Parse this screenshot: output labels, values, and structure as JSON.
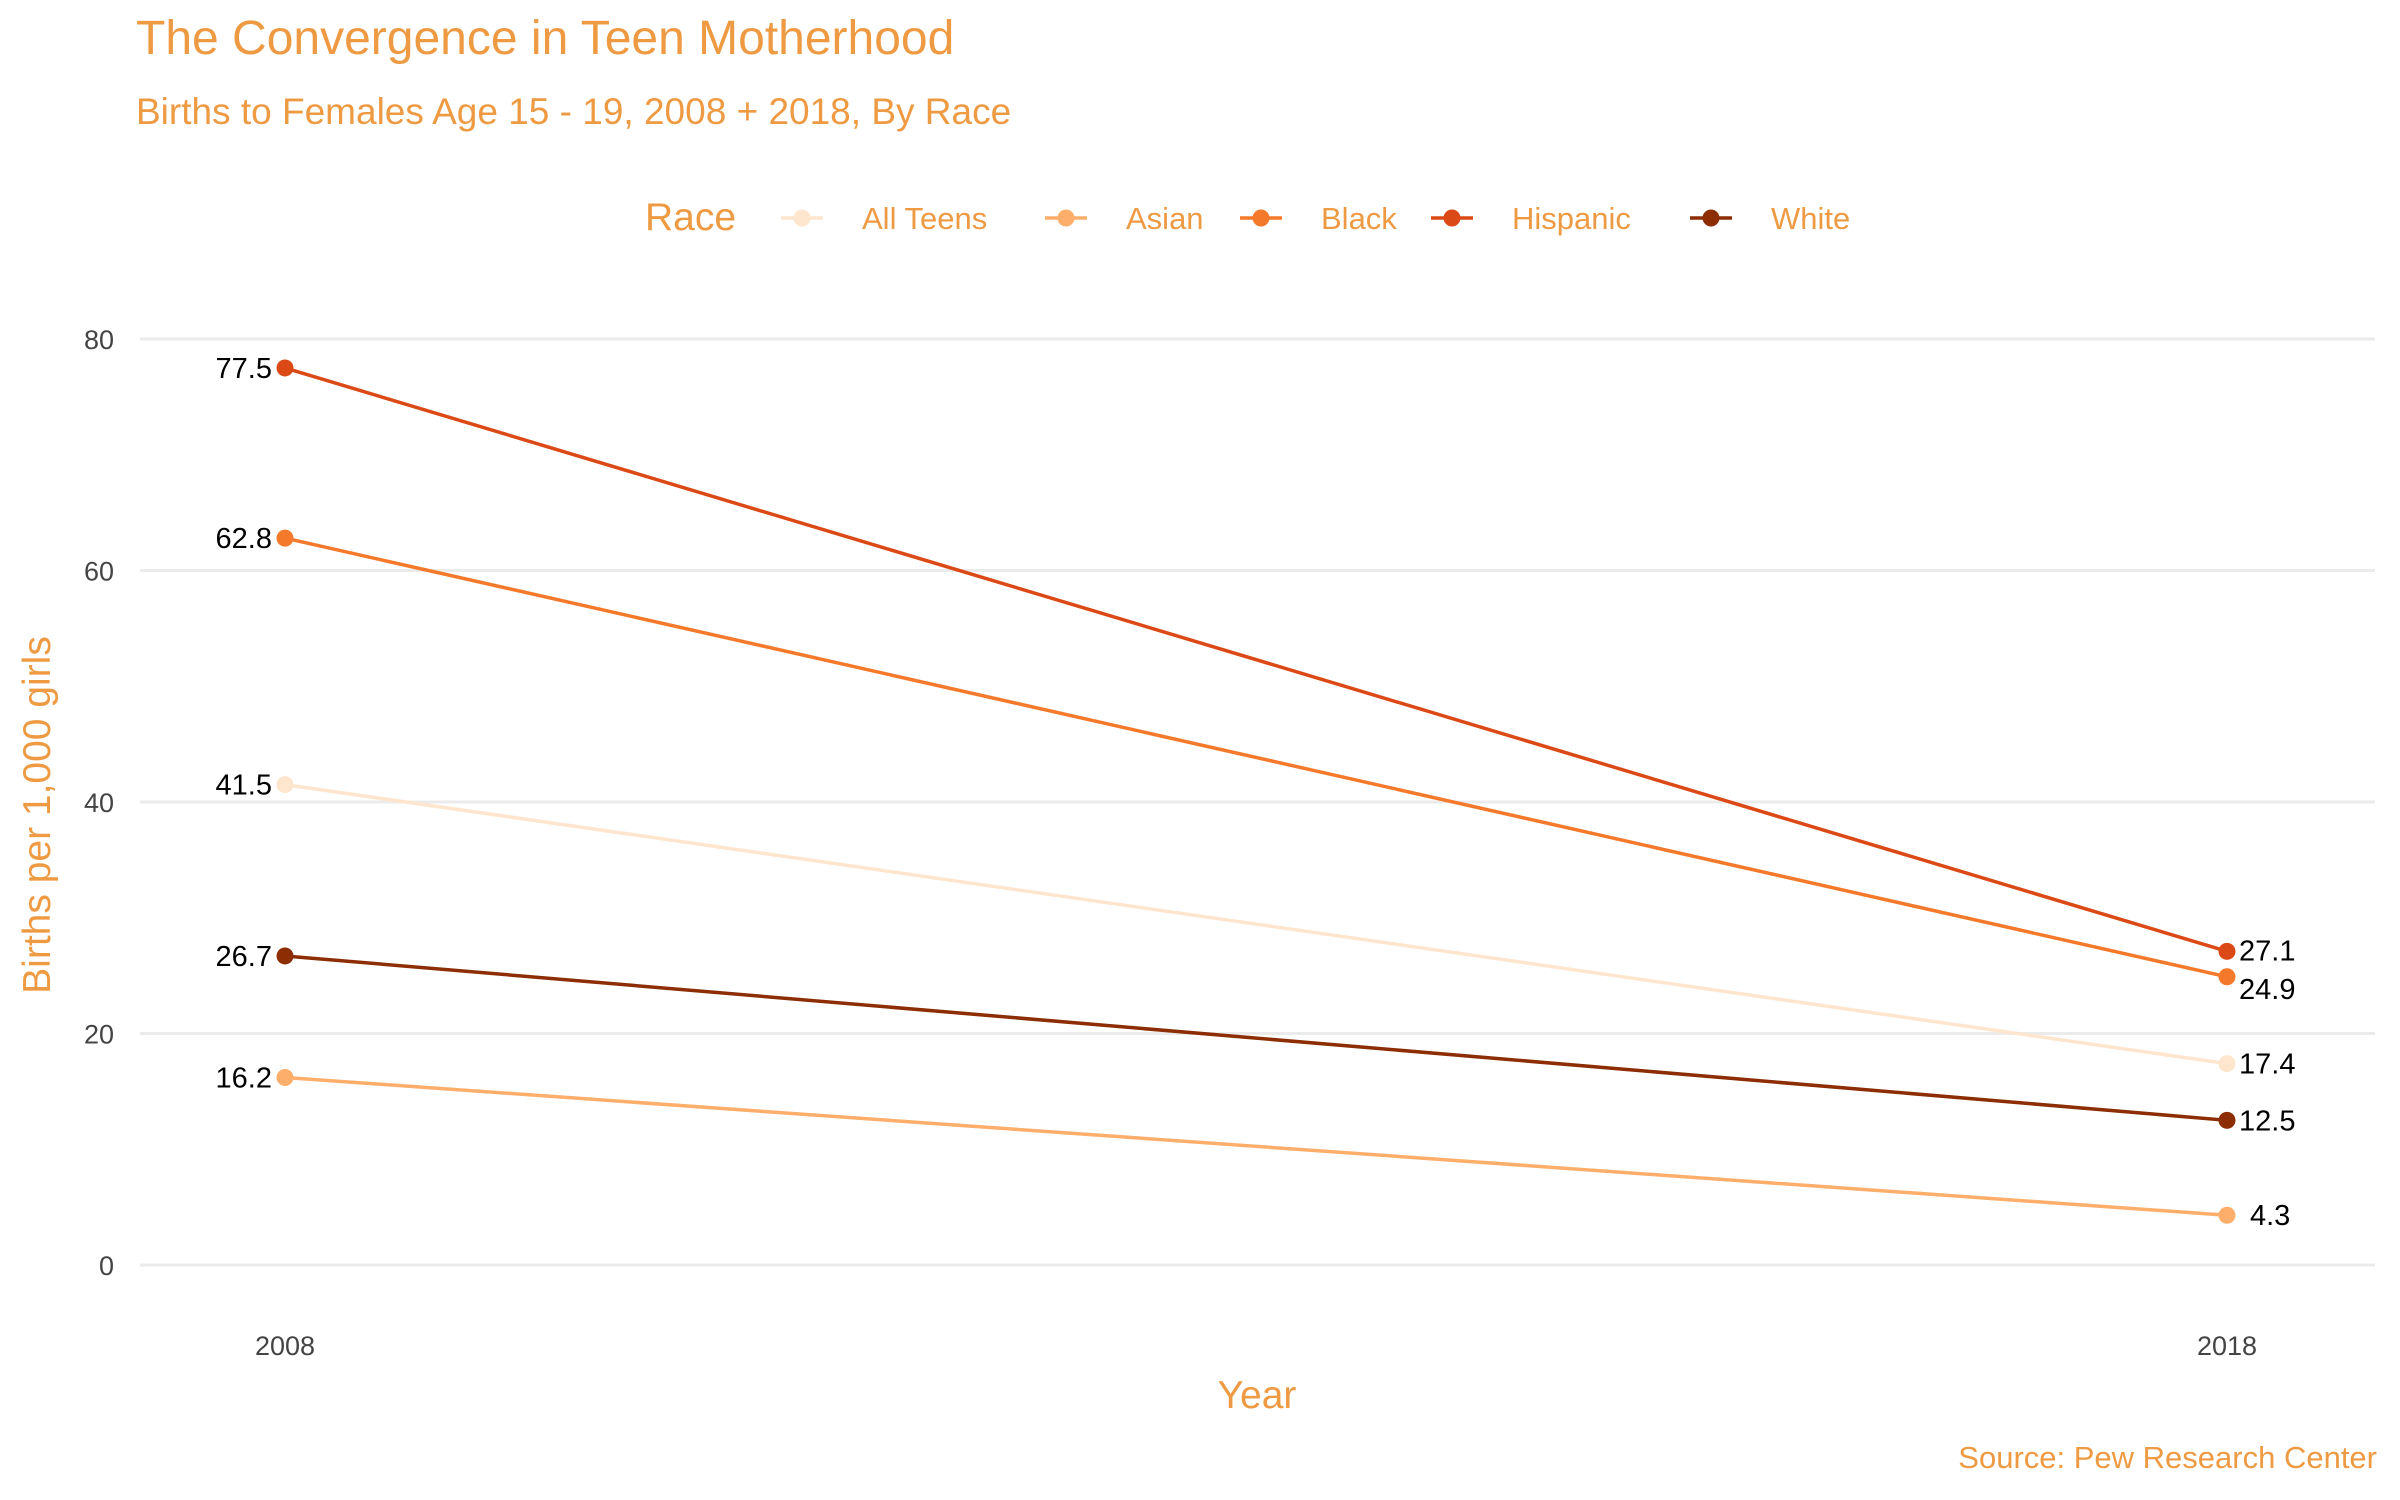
{
  "chart_data": {
    "type": "line",
    "title": "The Convergence in Teen Motherhood",
    "subtitle": "Births to Females Age 15 - 19, 2008 + 2018, By Race",
    "xlabel": "Year",
    "ylabel": "Births per 1,000 girls",
    "caption": "Source: Pew Research Center",
    "legend_title": "Race",
    "legend_position": "top",
    "grid": true,
    "x": [
      2008,
      2018
    ],
    "x_tick_labels": [
      "2008",
      "2018"
    ],
    "ylim": [
      0,
      80
    ],
    "y_ticks": [
      0,
      20,
      40,
      60,
      80
    ],
    "y_tick_labels": [
      "0",
      "20",
      "40",
      "60",
      "80"
    ],
    "series": [
      {
        "name": "All Teens",
        "color": "#FEE6CE",
        "values": [
          41.5,
          17.4
        ],
        "labels": [
          "41.5",
          "17.4"
        ]
      },
      {
        "name": "Asian",
        "color": "#FDAE6B",
        "values": [
          16.2,
          4.3
        ],
        "labels": [
          "16.2",
          "4.3"
        ]
      },
      {
        "name": "Black",
        "color": "#F4792B",
        "values": [
          62.8,
          24.9
        ],
        "labels": [
          "62.8",
          "24.9"
        ]
      },
      {
        "name": "Hispanic",
        "color": "#DB4A16",
        "values": [
          77.5,
          27.1
        ],
        "labels": [
          "77.5",
          "27.1"
        ]
      },
      {
        "name": "White",
        "color": "#8C2D04",
        "values": [
          26.7,
          12.5
        ],
        "labels": [
          "26.7",
          "12.5"
        ]
      }
    ],
    "colors": {
      "text_accent": "#EE9A43",
      "gridline": "#EBEBEB"
    }
  }
}
